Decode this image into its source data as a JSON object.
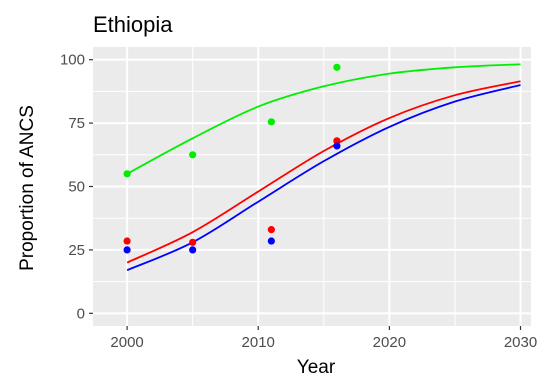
{
  "chart_data": {
    "type": "scatter",
    "title": "Ethiopia",
    "xlabel": "Year",
    "ylabel": "Proportion of ANCS",
    "xlim": [
      1997.4,
      2030.8
    ],
    "ylim": [
      -5,
      105
    ],
    "xticks": [
      2000,
      2010,
      2020,
      2030
    ],
    "yticks": [
      0,
      25,
      50,
      75,
      100
    ],
    "xtick_labels": [
      "2000",
      "2010",
      "2020",
      "2030"
    ],
    "ytick_labels": [
      "0",
      "25",
      "50",
      "75",
      "100"
    ],
    "grid": true,
    "legend": "none",
    "background_color": "#ebebeb",
    "grid_color": "#ffffff",
    "series": [
      {
        "color": "#00ee00",
        "points": [
          {
            "x": 2000,
            "y": 55
          },
          {
            "x": 2005,
            "y": 62.5
          },
          {
            "x": 2011,
            "y": 75.5
          },
          {
            "x": 2016,
            "y": 97
          }
        ],
        "curve": [
          {
            "x": 2000,
            "y": 55
          },
          {
            "x": 2005,
            "y": 69
          },
          {
            "x": 2010,
            "y": 81.5
          },
          {
            "x": 2015,
            "y": 89.5
          },
          {
            "x": 2020,
            "y": 94.5
          },
          {
            "x": 2025,
            "y": 97
          },
          {
            "x": 2030,
            "y": 98.2
          }
        ]
      },
      {
        "color": "#ff0000",
        "points": [
          {
            "x": 2000,
            "y": 28.5
          },
          {
            "x": 2005,
            "y": 28
          },
          {
            "x": 2011,
            "y": 33
          },
          {
            "x": 2016,
            "y": 68
          }
        ],
        "curve": [
          {
            "x": 2000,
            "y": 20
          },
          {
            "x": 2005,
            "y": 32
          },
          {
            "x": 2010,
            "y": 48
          },
          {
            "x": 2015,
            "y": 64
          },
          {
            "x": 2020,
            "y": 77
          },
          {
            "x": 2025,
            "y": 86
          },
          {
            "x": 2030,
            "y": 91.5
          }
        ]
      },
      {
        "color": "#0000ff",
        "points": [
          {
            "x": 2000,
            "y": 25
          },
          {
            "x": 2005,
            "y": 25
          },
          {
            "x": 2011,
            "y": 28.5
          },
          {
            "x": 2016,
            "y": 66
          }
        ],
        "curve": [
          {
            "x": 2000,
            "y": 17
          },
          {
            "x": 2005,
            "y": 28
          },
          {
            "x": 2010,
            "y": 44
          },
          {
            "x": 2015,
            "y": 60
          },
          {
            "x": 2020,
            "y": 73.5
          },
          {
            "x": 2025,
            "y": 83.5
          },
          {
            "x": 2030,
            "y": 90
          }
        ]
      }
    ]
  }
}
